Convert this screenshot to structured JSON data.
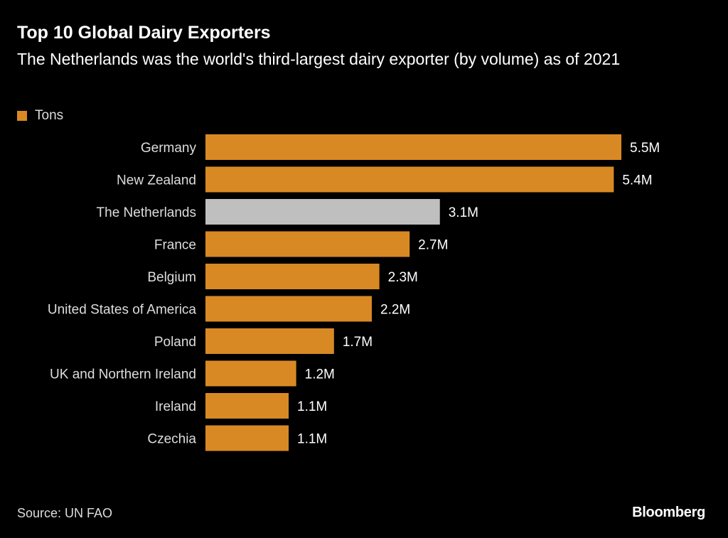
{
  "chart_data": {
    "type": "bar",
    "orientation": "horizontal",
    "title": "Top 10 Global Dairy Exporters",
    "subtitle": "The Netherlands was the world's third-largest dairy exporter (by volume) as of 2021",
    "legend": [
      {
        "label": "Tons",
        "color": "#d98924"
      }
    ],
    "legend_position": "top-left",
    "categories": [
      "Germany",
      "New Zealand",
      "The Netherlands",
      "France",
      "Belgium",
      "United States of America",
      "Poland",
      "UK and Northern Ireland",
      "Ireland",
      "Czechia"
    ],
    "values": [
      5.5,
      5.4,
      3.1,
      2.7,
      2.3,
      2.2,
      1.7,
      1.2,
      1.1,
      1.1
    ],
    "value_labels": [
      "5.5M",
      "5.4M",
      "3.1M",
      "2.7M",
      "2.3M",
      "2.2M",
      "1.7M",
      "1.2M",
      "1.1M",
      "1.1M"
    ],
    "units": "Tons (millions)",
    "highlight": "The Netherlands",
    "colors": {
      "default": "#d98924",
      "highlight": "#bfbfbf"
    },
    "xlim": [
      0,
      5.5
    ],
    "xlabel": "",
    "ylabel": "",
    "grid": false
  },
  "footer": {
    "source": "Source: UN FAO",
    "brand": "Bloomberg"
  }
}
